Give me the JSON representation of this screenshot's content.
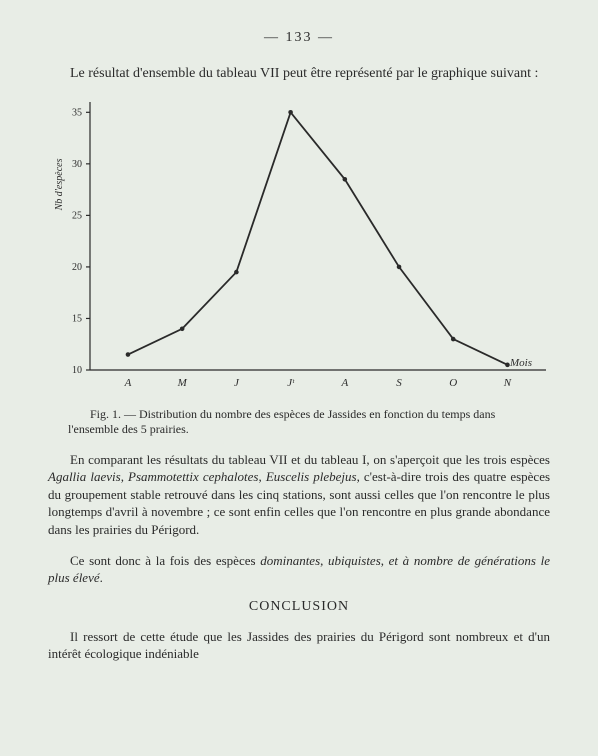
{
  "page_number": "—  133  —",
  "intro_text": "Le résultat d'ensemble du tableau VII peut être représenté par le graphique suivant :",
  "chart": {
    "type": "line",
    "y_axis_label": "Nb  d'espèces",
    "x_axis_label": "Mois",
    "categories": [
      "A",
      "M",
      "J",
      "Jᵗ",
      "A",
      "S",
      "O",
      "N"
    ],
    "values": [
      11.5,
      14,
      19.5,
      35,
      28.5,
      20,
      13,
      10.5
    ],
    "y_ticks": [
      10,
      15,
      20,
      25,
      30,
      35
    ],
    "ylim": [
      10,
      36
    ],
    "line_color": "#2a2a2a",
    "point_color": "#2a2a2a",
    "background_color": "#e8ede6",
    "axis_fontsize": 10,
    "ylabel_fontsize": 10,
    "line_width": 1.8,
    "marker_radius": 2.3
  },
  "caption_text": "Fig. 1. — Distribution du nombre des espèces de Jassides en fonction du temps dans l'ensemble des 5 prairies.",
  "para1": "En comparant les résultats du tableau VII et du tableau I, on s'aperçoit que les trois espèces <em>Agallia laevis</em>, <em>Psammotettix cephalotes</em>, <em>Euscelis plebejus</em>, c'est-à-dire trois des quatre espèces du groupement stable retrouvé dans les cinq stations, sont aussi celles que l'on rencontre le plus longtemps d'avril à novembre ; ce sont enfin celles que l'on rencontre en plus grande abondance dans les prairies du Périgord.",
  "para2": "Ce sont donc à la fois des espèces <em>dominantes</em>, <em>ubiquistes</em>, <em>et à nombre de générations le plus élevé</em>.",
  "conclusion_title": "CONCLUSION",
  "para3": "Il ressort de cette étude que les Jassides des prairies du Périgord sont nombreux et d'un intérêt écologique indéniable"
}
